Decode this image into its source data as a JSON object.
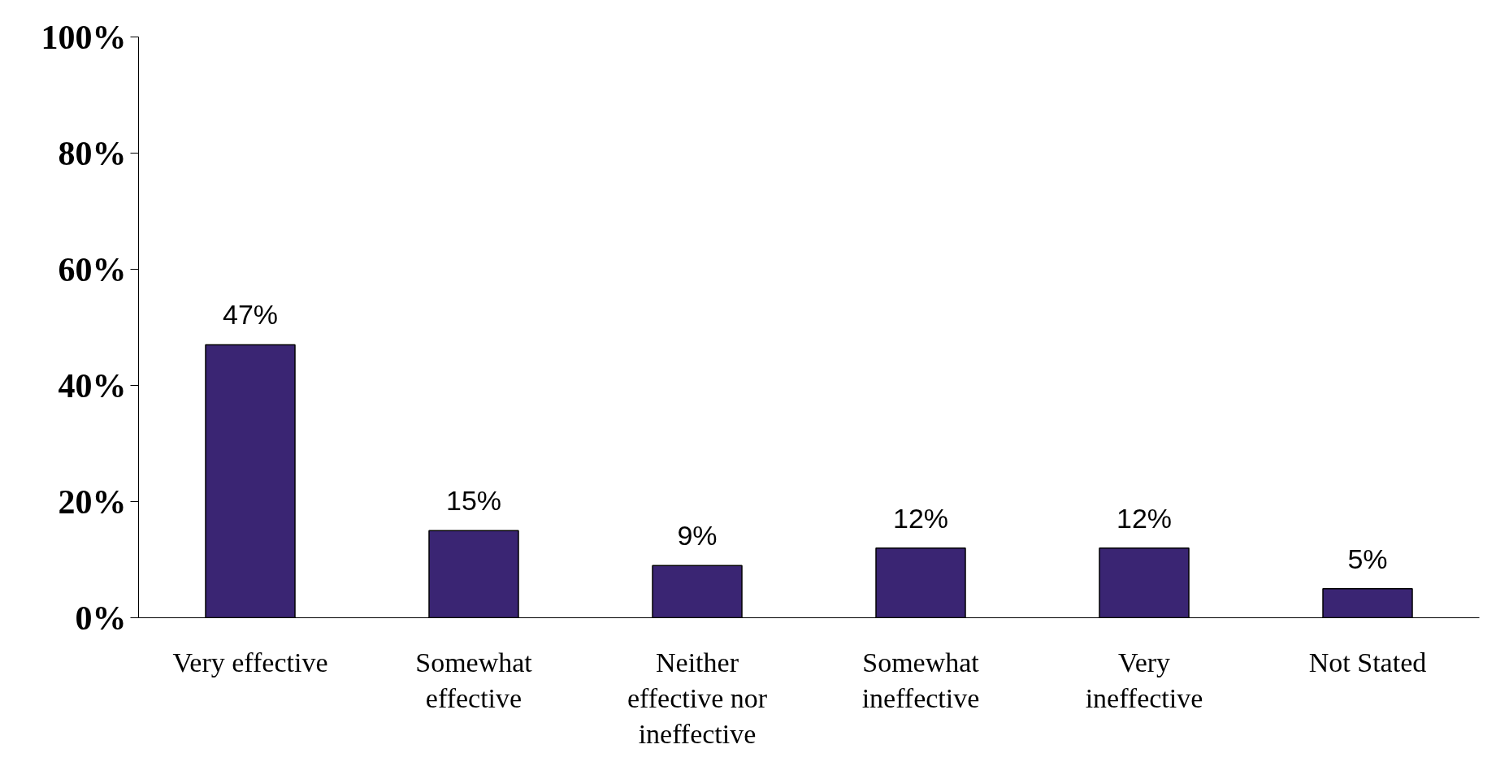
{
  "chart_data": {
    "type": "bar",
    "categories": [
      "Very effective",
      "Somewhat effective",
      "Neither effective nor ineffective",
      "Somewhat ineffective",
      "Very ineffective",
      "Not Stated"
    ],
    "values": [
      47,
      15,
      9,
      12,
      12,
      5
    ],
    "value_labels": [
      "47%",
      "15%",
      "9%",
      "12%",
      "12%",
      "5%"
    ],
    "color": "#3a2573",
    "ylim": [
      0,
      100
    ],
    "yticks": [
      {
        "value": 0,
        "label": "0%"
      },
      {
        "value": 20,
        "label": "20%"
      },
      {
        "value": 40,
        "label": "40%"
      },
      {
        "value": 60,
        "label": "60%"
      },
      {
        "value": 80,
        "label": "80%"
      },
      {
        "value": 100,
        "label": "100%"
      }
    ],
    "grid": false
  }
}
